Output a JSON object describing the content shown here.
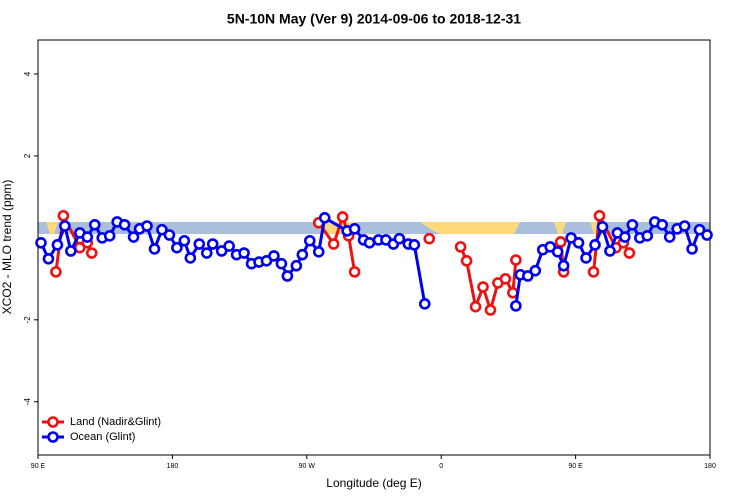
{
  "chart_data": {
    "type": "line",
    "title": "5N-10N May (Ver 9)   2014-09-06 to 2018-12-31",
    "x_label": "Longitude (deg E)",
    "y_label": "XCO2 - MLO trend (ppm)",
    "xlim": [
      90,
      540
    ],
    "ylim": [
      -5.3,
      4.83
    ],
    "xticks": [
      {
        "value": 90,
        "label": "90 E"
      },
      {
        "value": 180,
        "label": "180"
      },
      {
        "value": 270,
        "label": "90 W"
      },
      {
        "value": 360,
        "label": "0"
      },
      {
        "value": 450,
        "label": "90 E"
      },
      {
        "value": 540,
        "label": "180"
      }
    ],
    "yticks": [
      -4,
      -2,
      2,
      4
    ],
    "legend": "bottom-left",
    "series": [
      {
        "name": "Land (Nadir&Glint)",
        "color": "#ee1111",
        "x": [
          102,
          107,
          118,
          123,
          126,
          null,
          278,
          288,
          294,
          298,
          302,
          null,
          352,
          null,
          373,
          377,
          383,
          388,
          393,
          398,
          403,
          408,
          410,
          null,
          440,
          442,
          null,
          462,
          466,
          477,
          482,
          486
        ],
        "values": [
          -0.83,
          0.54,
          -0.24,
          -0.12,
          -0.37,
          null,
          0.37,
          -0.15,
          0.51,
          0.05,
          -0.83,
          null,
          -0.02,
          null,
          -0.22,
          -0.56,
          -1.68,
          -1.2,
          -1.76,
          -1.1,
          -1.0,
          -1.34,
          -0.54,
          null,
          -0.1,
          -0.83,
          null,
          -0.83,
          0.54,
          -0.24,
          -0.12,
          -0.37
        ]
      },
      {
        "name": "Ocean (Glint)",
        "color": "#0000ee",
        "x": [
          92,
          97,
          103,
          108,
          112,
          118,
          123,
          128,
          133,
          138,
          143,
          148,
          154,
          158,
          163,
          168,
          173,
          178,
          183,
          188,
          192,
          198,
          203,
          207,
          213,
          218,
          223,
          228,
          233,
          238,
          243,
          248,
          253,
          257,
          263,
          267,
          272,
          278,
          282,
          297,
          302,
          308,
          312,
          318,
          323,
          328,
          332,
          338,
          342,
          349,
          null,
          410,
          413,
          418,
          423,
          428,
          433,
          438,
          442,
          447,
          452,
          457,
          463,
          468,
          473,
          478,
          483,
          488,
          493,
          498,
          503,
          508,
          513,
          518,
          523,
          528,
          533,
          538
        ],
        "values": [
          -0.12,
          -0.51,
          -0.17,
          0.29,
          -0.32,
          0.12,
          0.02,
          0.32,
          0,
          0.05,
          0.39,
          0.32,
          0.02,
          0.22,
          0.29,
          -0.27,
          0.2,
          0.07,
          -0.24,
          -0.07,
          -0.49,
          -0.15,
          -0.37,
          -0.15,
          -0.32,
          -0.2,
          -0.41,
          -0.37,
          -0.63,
          -0.59,
          -0.56,
          -0.44,
          -0.63,
          -0.93,
          -0.68,
          -0.41,
          -0.07,
          -0.34,
          0.49,
          0.17,
          0.22,
          -0.05,
          -0.12,
          -0.05,
          -0.05,
          -0.15,
          -0.02,
          -0.15,
          -0.17,
          -1.61,
          null,
          -1.66,
          -0.9,
          -0.93,
          -0.8,
          -0.29,
          -0.22,
          -0.34,
          -0.68,
          0,
          -0.12,
          -0.49,
          -0.17,
          0.27,
          -0.32,
          0.12,
          0.02,
          0.32,
          0,
          0.05,
          0.39,
          0.32,
          0.02,
          0.22,
          0.29,
          -0.27,
          0.2,
          0.07
        ]
      }
    ]
  }
}
